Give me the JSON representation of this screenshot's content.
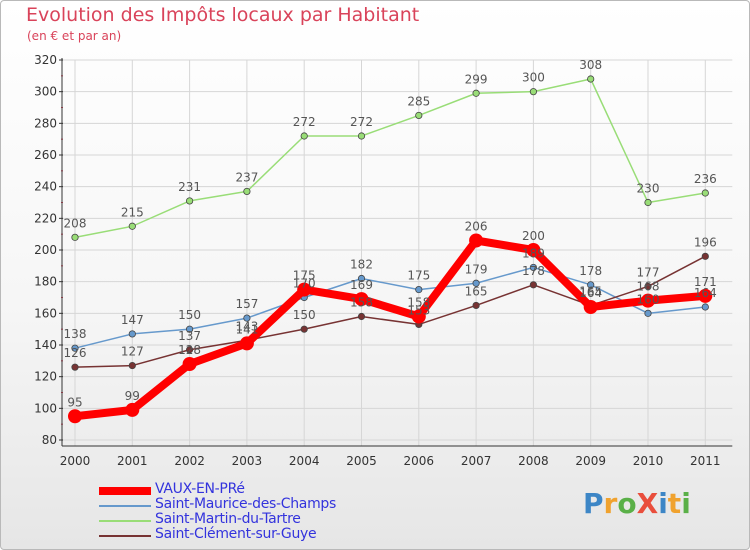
{
  "header": {
    "title": "Evolution des Impôts locaux par Habitant",
    "subtitle": "(en € et par an)"
  },
  "logo": {
    "text": "ProXiti",
    "letters": [
      "P",
      "r",
      "o",
      "X",
      "i",
      "t",
      "i"
    ],
    "colors": [
      "#3d86c6",
      "#f0a22e",
      "#5ab048",
      "#e94e3c",
      "#3d86c6",
      "#f0a22e",
      "#5ab048"
    ]
  },
  "colors": {
    "title": "#d9435a",
    "grid": "#d6d6d6",
    "legend_text": "#3333dd"
  },
  "chart_data": {
    "type": "line",
    "title": "Evolution des Impôts locaux par Habitant",
    "subtitle": "(en € et par an)",
    "xlabel": "",
    "ylabel": "",
    "ylim": [
      80,
      320
    ],
    "yticks": [
      80,
      100,
      120,
      140,
      160,
      180,
      200,
      220,
      240,
      260,
      280,
      300,
      320
    ],
    "grid": true,
    "legend_position": "bottom-left",
    "x": [
      "2000",
      "2001",
      "2002",
      "2003",
      "2004",
      "2005",
      "2006",
      "2007",
      "2008",
      "2009",
      "2010",
      "2011"
    ],
    "series": [
      {
        "name": "VAUX-EN-PRé",
        "color": "#ff0000",
        "values": [
          95,
          99,
          128,
          141,
          175,
          169,
          158,
          206,
          200,
          164,
          168,
          171
        ]
      },
      {
        "name": "Saint-Maurice-des-Champs",
        "color": "#6699cc",
        "values": [
          138,
          147,
          150,
          157,
          170,
          182,
          175,
          179,
          189,
          178,
          160,
          164
        ]
      },
      {
        "name": "Saint-Martin-du-Tartre",
        "color": "#99dd77",
        "values": [
          208,
          215,
          231,
          237,
          272,
          272,
          285,
          299,
          300,
          308,
          230,
          236
        ]
      },
      {
        "name": "Saint-Clément-sur-Guye",
        "color": "#773333",
        "values": [
          126,
          127,
          137,
          143,
          150,
          158,
          153,
          165,
          178,
          165,
          177,
          196
        ]
      }
    ]
  }
}
